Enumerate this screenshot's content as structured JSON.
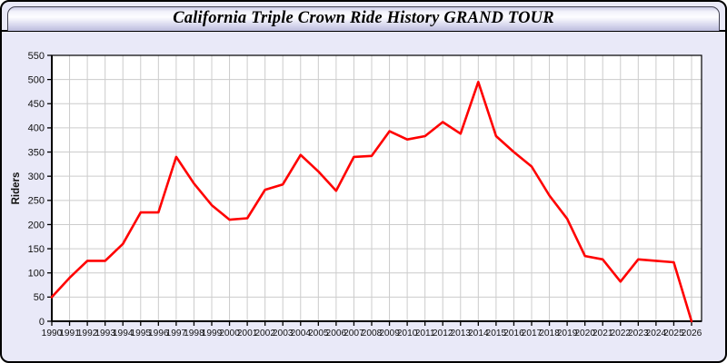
{
  "window": {
    "title": "California Triple Crown Ride History GRAND TOUR"
  },
  "colors": {
    "page_background": "#e9e9f8",
    "titlebar_top": "#c8c8e4",
    "titlebar_highlight": "#fdfdff",
    "titlebar_bottom": "#bcbcdc",
    "plot_background": "#ffffff",
    "grid": "#cccccc",
    "axis": "#000000",
    "tick_label": "#111111",
    "line": "#ff0000"
  },
  "chart_data": {
    "type": "line",
    "title": "California Triple Crown Ride History GRAND TOUR",
    "xlabel": "",
    "ylabel": "Riders",
    "grid": true,
    "legend_position": "none",
    "ylim": [
      0,
      550
    ],
    "ytick_step": 50,
    "categories": [
      "1990",
      "1991",
      "1992",
      "1993",
      "1994",
      "1995",
      "1996",
      "1997",
      "1998",
      "1999",
      "2000",
      "2001",
      "2002",
      "2003",
      "2004",
      "2005",
      "2006",
      "2007",
      "2008",
      "2009",
      "2010",
      "2011",
      "2012",
      "2013",
      "2014",
      "2015",
      "2016",
      "2017",
      "2018",
      "2019",
      "2020",
      "2021",
      "2022",
      "2023",
      "2024",
      "2025",
      "2026"
    ],
    "series": [
      {
        "name": "Riders",
        "color": "#ff0000",
        "values": [
          50,
          90,
          125,
          125,
          160,
          225,
          225,
          340,
          285,
          240,
          210,
          213,
          272,
          283,
          344,
          310,
          270,
          340,
          342,
          393,
          376,
          383,
          412,
          388,
          495,
          383,
          350,
          320,
          260,
          212,
          135,
          128,
          82,
          128,
          125,
          122,
          0
        ]
      }
    ]
  }
}
